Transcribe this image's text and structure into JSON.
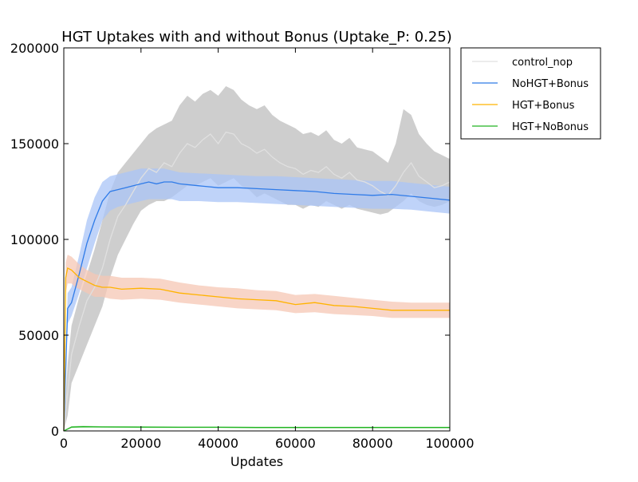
{
  "chart_data": {
    "type": "line",
    "title": "HGT Uptakes with and without Bonus (Uptake_P: 0.25)",
    "xlabel": "Updates",
    "ylabel": "",
    "xlim": [
      0,
      100000
    ],
    "ylim": [
      0,
      200000
    ],
    "xticks": [
      "0",
      "20000",
      "40000",
      "60000",
      "80000",
      "100000"
    ],
    "yticks": [
      "0",
      "50000",
      "100000",
      "150000",
      "200000"
    ],
    "grid": false,
    "legend_position": "outside-top-right",
    "series": [
      {
        "name": "control_nop",
        "color": "#e0e0e0",
        "band_color": "#bdbdbd",
        "x": [
          0,
          1000,
          2000,
          4000,
          6000,
          8000,
          10000,
          12000,
          14000,
          16000,
          18000,
          20000,
          22000,
          24000,
          26000,
          28000,
          30000,
          32000,
          34000,
          36000,
          38000,
          40000,
          42000,
          44000,
          46000,
          48000,
          50000,
          52000,
          54000,
          56000,
          58000,
          60000,
          62000,
          64000,
          66000,
          68000,
          70000,
          72000,
          74000,
          76000,
          78000,
          80000,
          82000,
          84000,
          86000,
          88000,
          90000,
          92000,
          94000,
          96000,
          98000,
          100000
        ],
        "y": [
          0,
          20000,
          40000,
          55000,
          68000,
          75000,
          85000,
          100000,
          112000,
          118000,
          125000,
          132000,
          137000,
          135000,
          140000,
          138000,
          145000,
          150000,
          148000,
          152000,
          155000,
          150000,
          156000,
          155000,
          150000,
          148000,
          145000,
          147000,
          143000,
          140000,
          138000,
          137000,
          134000,
          136000,
          135000,
          138000,
          134000,
          132000,
          135000,
          131000,
          130000,
          128000,
          125000,
          123000,
          128000,
          135000,
          140000,
          133000,
          130000,
          127000,
          128000,
          130000
        ],
        "lower": [
          0,
          8000,
          25000,
          35000,
          45000,
          55000,
          65000,
          80000,
          92000,
          100000,
          108000,
          115000,
          118000,
          120000,
          120000,
          122000,
          125000,
          128000,
          128000,
          130000,
          132000,
          128000,
          130000,
          132000,
          128000,
          126000,
          122000,
          124000,
          122000,
          120000,
          118000,
          118000,
          116000,
          118000,
          117000,
          120000,
          118000,
          116000,
          118000,
          116000,
          115000,
          114000,
          113000,
          114000,
          117000,
          120000,
          124000,
          120000,
          118000,
          117000,
          118000,
          120000
        ],
        "upper": [
          0,
          35000,
          55000,
          70000,
          82000,
          95000,
          110000,
          125000,
          135000,
          140000,
          145000,
          150000,
          155000,
          158000,
          160000,
          162000,
          170000,
          175000,
          172000,
          176000,
          178000,
          175000,
          180000,
          178000,
          173000,
          170000,
          168000,
          170000,
          165000,
          162000,
          160000,
          158000,
          155000,
          156000,
          154000,
          157000,
          152000,
          150000,
          153000,
          148000,
          147000,
          146000,
          143000,
          140000,
          150000,
          168000,
          165000,
          155000,
          150000,
          146000,
          144000,
          142000
        ]
      },
      {
        "name": "NoHGT+Bonus",
        "color": "#2f7be8",
        "band_color": "#aac4f7",
        "x": [
          0,
          1000,
          2000,
          4000,
          6000,
          8000,
          10000,
          12000,
          14000,
          16000,
          18000,
          20000,
          22000,
          24000,
          26000,
          28000,
          30000,
          35000,
          40000,
          45000,
          50000,
          55000,
          60000,
          65000,
          70000,
          75000,
          80000,
          85000,
          90000,
          95000,
          100000
        ],
        "y": [
          0,
          64000,
          67000,
          82000,
          98000,
          110000,
          120000,
          125000,
          126000,
          127000,
          128000,
          129000,
          130000,
          129000,
          130000,
          130000,
          129000,
          128000,
          127000,
          127000,
          126500,
          126000,
          125500,
          125000,
          124000,
          123500,
          123000,
          123500,
          122500,
          121500,
          120500
        ],
        "lower": [
          0,
          56000,
          60000,
          72000,
          85000,
          98000,
          110000,
          115000,
          117000,
          118000,
          119000,
          120000,
          121000,
          121000,
          121000,
          121000,
          120000,
          120000,
          119500,
          119500,
          119000,
          118500,
          118000,
          117500,
          117000,
          116500,
          116000,
          116000,
          115500,
          114500,
          113500
        ],
        "upper": [
          0,
          72000,
          75000,
          92000,
          110000,
          122000,
          130000,
          133000,
          134000,
          135000,
          136000,
          137000,
          137000,
          137000,
          137000,
          136000,
          135000,
          134500,
          134000,
          133500,
          133000,
          133000,
          132500,
          132000,
          131500,
          131000,
          130500,
          130500,
          129500,
          128500,
          127500
        ]
      },
      {
        "name": "HGT+Bonus",
        "color": "#ffb300",
        "band_color": "#f5c7b4",
        "x": [
          0,
          500,
          1000,
          2000,
          3000,
          4000,
          6000,
          8000,
          10000,
          12000,
          15000,
          20000,
          25000,
          30000,
          35000,
          40000,
          45000,
          50000,
          55000,
          60000,
          65000,
          70000,
          75000,
          80000,
          85000,
          90000,
          95000,
          100000
        ],
        "y": [
          0,
          80000,
          85000,
          84000,
          82000,
          80000,
          78000,
          76000,
          75000,
          75000,
          74000,
          74500,
          74000,
          72000,
          71000,
          70000,
          69000,
          68500,
          68000,
          66000,
          67000,
          65500,
          65000,
          64000,
          63000,
          63000,
          63000,
          63000
        ],
        "lower": [
          0,
          72000,
          77000,
          77000,
          75000,
          74000,
          72000,
          70000,
          70000,
          69000,
          68500,
          69000,
          68500,
          67000,
          66000,
          65000,
          64000,
          63500,
          63000,
          61500,
          62000,
          61000,
          60500,
          60000,
          59000,
          59000,
          59000,
          59000
        ],
        "upper": [
          0,
          88000,
          92000,
          91000,
          89000,
          87000,
          84000,
          82000,
          81000,
          81000,
          80000,
          80000,
          79500,
          77500,
          76000,
          75000,
          74500,
          73500,
          73000,
          71000,
          71500,
          70500,
          69500,
          68500,
          67500,
          67000,
          67000,
          67000
        ]
      },
      {
        "name": "HGT+NoBonus",
        "color": "#22b522",
        "band_color": "#a5e0a5",
        "x": [
          0,
          2000,
          5000,
          10000,
          20000,
          30000,
          40000,
          50000,
          60000,
          70000,
          80000,
          90000,
          100000
        ],
        "y": [
          0,
          2000,
          2200,
          2100,
          2000,
          1900,
          1900,
          1800,
          1800,
          1800,
          1800,
          1800,
          1800
        ],
        "lower": [
          0,
          1500,
          1700,
          1700,
          1600,
          1500,
          1500,
          1400,
          1400,
          1400,
          1400,
          1400,
          1400
        ],
        "upper": [
          0,
          2500,
          2700,
          2500,
          2400,
          2300,
          2300,
          2200,
          2200,
          2200,
          2200,
          2200,
          2200
        ]
      }
    ]
  }
}
